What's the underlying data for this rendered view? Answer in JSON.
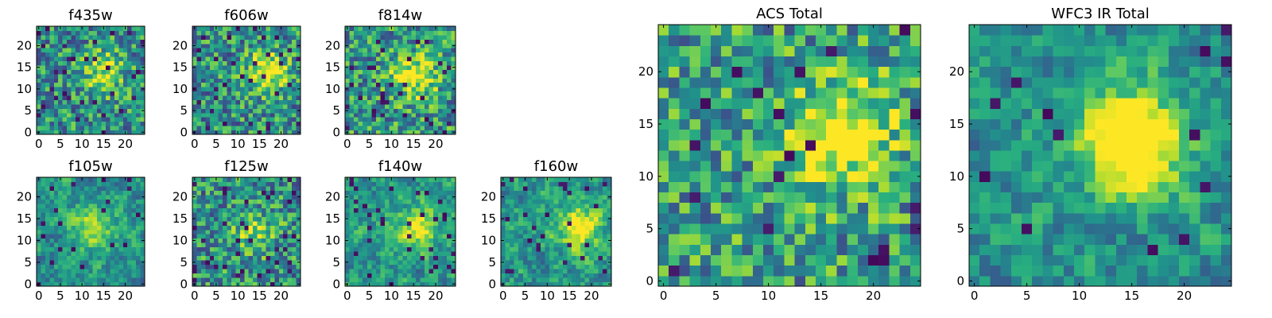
{
  "colormap": "viridis",
  "chart_data": [
    {
      "type": "heatmap",
      "title": "f435w",
      "grid_size": 25,
      "xlim": [
        0,
        24
      ],
      "ylim": [
        0,
        24
      ],
      "xticks": [
        "0",
        "5",
        "10",
        "15",
        "20"
      ],
      "yticks": [
        "0",
        "5",
        "10",
        "15",
        "20"
      ],
      "seed": 11,
      "pixel": 1,
      "smooth": 0,
      "blob": [
        15,
        14,
        0.4
      ],
      "dark": 0.05,
      "bias": 0.15
    },
    {
      "type": "heatmap",
      "title": "f606w",
      "grid_size": 25,
      "xlim": [
        0,
        24
      ],
      "ylim": [
        0,
        24
      ],
      "xticks": [
        "0",
        "5",
        "10",
        "15",
        "20"
      ],
      "yticks": [
        "0",
        "5",
        "10",
        "15",
        "20"
      ],
      "seed": 23,
      "pixel": 1,
      "smooth": 0,
      "blob": [
        17,
        14,
        0.5
      ],
      "dark": 0.05,
      "bias": 0.15
    },
    {
      "type": "heatmap",
      "title": "f814w",
      "grid_size": 25,
      "xlim": [
        0,
        24
      ],
      "ylim": [
        0,
        24
      ],
      "xticks": [
        "0",
        "5",
        "10",
        "15",
        "20"
      ],
      "yticks": [
        "0",
        "5",
        "10",
        "15",
        "20"
      ],
      "seed": 37,
      "pixel": 1,
      "smooth": 0,
      "blob": [
        15,
        13,
        0.5
      ],
      "dark": 0.05,
      "bias": 0.18
    },
    {
      "type": "heatmap",
      "title": "f105w",
      "grid_size": 25,
      "xlim": [
        0,
        24
      ],
      "ylim": [
        0,
        24
      ],
      "xticks": [
        "0",
        "5",
        "10",
        "15",
        "20"
      ],
      "yticks": [
        "0",
        "5",
        "10",
        "15",
        "20"
      ],
      "seed": 41,
      "pixel": 1,
      "smooth": 1,
      "blob": [
        13,
        13,
        0.4
      ],
      "dark": 0.04,
      "bias": 0.15
    },
    {
      "type": "heatmap",
      "title": "f125w",
      "grid_size": 25,
      "xlim": [
        0,
        24
      ],
      "ylim": [
        0,
        24
      ],
      "xticks": [
        "0",
        "5",
        "10",
        "15",
        "20"
      ],
      "yticks": [
        "0",
        "5",
        "10",
        "15",
        "20"
      ],
      "seed": 53,
      "pixel": 1,
      "smooth": 0,
      "blob": [
        14,
        12,
        0.3
      ],
      "dark": 0.05,
      "bias": 0.15
    },
    {
      "type": "heatmap",
      "title": "f140w",
      "grid_size": 25,
      "xlim": [
        0,
        24
      ],
      "ylim": [
        0,
        24
      ],
      "xticks": [
        "0",
        "5",
        "10",
        "15",
        "20"
      ],
      "yticks": [
        "0",
        "5",
        "10",
        "15",
        "20"
      ],
      "seed": 67,
      "pixel": 1,
      "smooth": 1,
      "blob": [
        16,
        13,
        0.4
      ],
      "dark": 0.05,
      "bias": 0.18
    },
    {
      "type": "heatmap",
      "title": "f160w",
      "grid_size": 25,
      "xlim": [
        0,
        24
      ],
      "ylim": [
        0,
        24
      ],
      "xticks": [
        "0",
        "5",
        "10",
        "15",
        "20"
      ],
      "yticks": [
        "0",
        "5",
        "10",
        "15",
        "20"
      ],
      "seed": 79,
      "pixel": 1,
      "smooth": 1,
      "blob": [
        17,
        13,
        0.5
      ],
      "dark": 0.04,
      "bias": 0.18
    },
    {
      "type": "heatmap",
      "title": "ACS Total",
      "grid_size": 25,
      "xlim": [
        0,
        24
      ],
      "ylim": [
        0,
        24
      ],
      "xticks": [
        "0",
        "5",
        "10",
        "15",
        "20"
      ],
      "yticks": [
        "0",
        "5",
        "10",
        "15",
        "20"
      ],
      "seed": 97,
      "pixel": 1,
      "smooth": 0,
      "blob": [
        17,
        14,
        0.6
      ],
      "dark": 0.03,
      "bias": 0.2
    },
    {
      "type": "heatmap",
      "title": "WFC3 IR Total",
      "grid_size": 25,
      "xlim": [
        0,
        24
      ],
      "ylim": [
        0,
        24
      ],
      "xticks": [
        "0",
        "5",
        "10",
        "15",
        "20"
      ],
      "yticks": [
        "0",
        "5",
        "10",
        "15",
        "20"
      ],
      "seed": 131,
      "pixel": 1,
      "smooth": 1,
      "blob": [
        15,
        13,
        0.8
      ],
      "dark": 0.025,
      "bias": 0.15
    }
  ]
}
